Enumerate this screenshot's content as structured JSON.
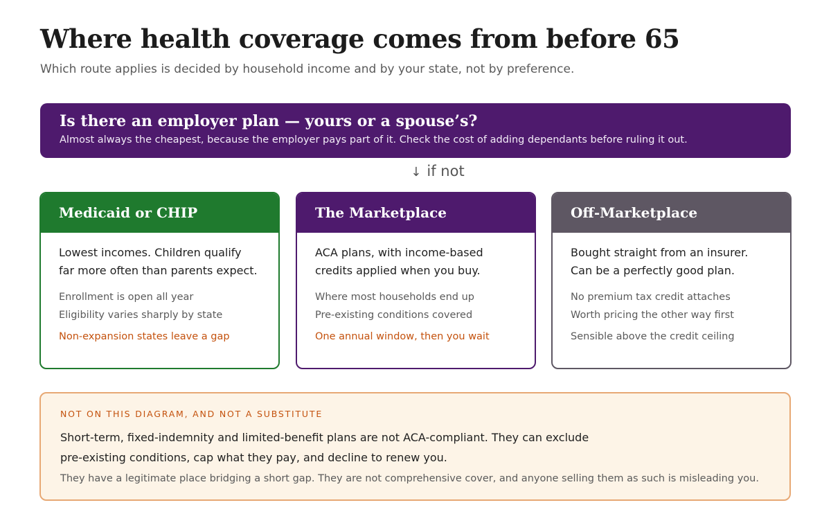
{
  "title": "Where health coverage comes from before 65",
  "subtitle": "Which route applies is decided by household income and by your state, not by preference.",
  "top": {
    "question": "Is there an employer plan — yours or a spouse’s?",
    "detail": "Almost always the cheapest, because the employer pays part of it. Check the cost of adding dependants before ruling it out."
  },
  "connector": {
    "arrow": "↓",
    "label": "if not"
  },
  "cards": [
    {
      "title": "Medicaid or CHIP",
      "lead_1": "Lowest incomes. Children qualify",
      "lead_2": "far more often than parents expect.",
      "point_1": "Enrollment is open all year",
      "point_2": "Eligibility varies sharply by state",
      "footer": "Non-expansion states leave a gap",
      "color": "#1f7a2e"
    },
    {
      "title": "The Marketplace",
      "lead_1": "ACA plans, with income-based",
      "lead_2": "credits applied when you buy.",
      "point_1": "Where most households end up",
      "point_2": "Pre-existing conditions covered",
      "footer": "One annual window, then you wait",
      "color": "#4e1a6d"
    },
    {
      "title": "Off-Marketplace",
      "lead_1": "Bought straight from an insurer.",
      "lead_2": "Can be a perfectly good plan.",
      "point_1": "No premium tax credit attaches",
      "point_2": "Worth pricing the other way first",
      "footer": "Sensible above the credit ceiling",
      "color": "#5e5763"
    }
  ],
  "note": {
    "label": "NOT ON THIS DIAGRAM, AND NOT A SUBSTITUTE",
    "main_1": "Short-term, fixed-indemnity and limited-benefit plans are not ACA-compliant. They can exclude",
    "main_2": "pre-existing conditions, cap what they pay, and decline to renew you.",
    "sub": "They have a legitimate place bridging a short gap. They are not comprehensive cover, and anyone selling them as such is misleading you."
  },
  "colors": {
    "purple": "#4e1a6d",
    "green": "#1f7a2e",
    "slate": "#5e5763",
    "warning": "#c4520e",
    "note_bg": "#fdf4e7",
    "note_border": "#e7a874"
  }
}
